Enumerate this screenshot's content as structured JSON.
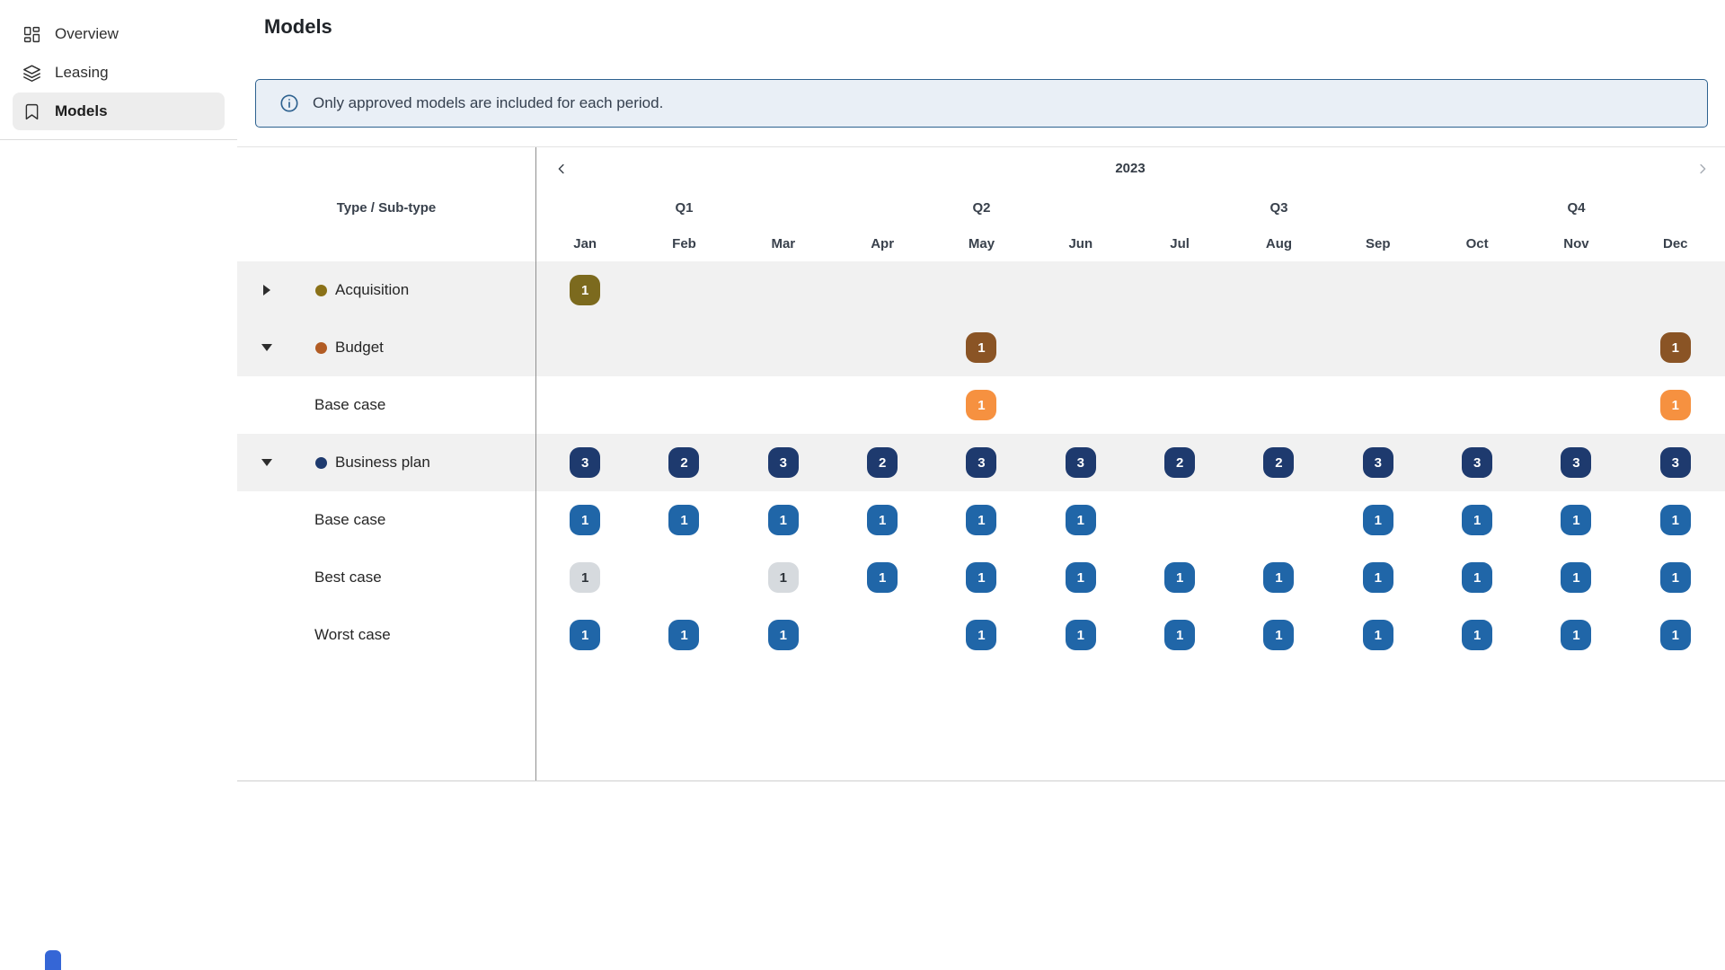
{
  "sidebar": {
    "items": [
      {
        "label": "Overview",
        "icon": "dashboard-icon",
        "active": false
      },
      {
        "label": "Leasing",
        "icon": "layers-icon",
        "active": false
      },
      {
        "label": "Models",
        "icon": "bookmark-icon",
        "active": true
      }
    ]
  },
  "header": {
    "title": "Models"
  },
  "banner": {
    "icon": "info-icon",
    "text": "Only approved models are included for each period."
  },
  "matrix": {
    "left_header": "Type / Sub-type",
    "year": "2023",
    "quarters": [
      "Q1",
      "Q2",
      "Q3",
      "Q4"
    ],
    "months": [
      "Jan",
      "Feb",
      "Mar",
      "Apr",
      "May",
      "Jun",
      "Jul",
      "Aug",
      "Sep",
      "Oct",
      "Nov",
      "Dec"
    ],
    "palette": {
      "olive": {
        "bg": "#7c6a1e",
        "fg": "#ffffff"
      },
      "brown": {
        "bg": "#8a5425",
        "fg": "#ffffff"
      },
      "orange": {
        "bg": "#f69140",
        "fg": "#ffffff"
      },
      "navy": {
        "bg": "#1e3a6e",
        "fg": "#ffffff"
      },
      "blue": {
        "bg": "#2066a8",
        "fg": "#ffffff"
      },
      "gray": {
        "bg": "#d6dade",
        "fg": "#2c3238"
      }
    },
    "dot_colors": {
      "acquisition-dot": "#8a7118",
      "budget-dot": "#b25c24",
      "business-plan-dot": "#1e3a6e"
    },
    "rows": [
      {
        "kind": "group",
        "label": "Acquisition",
        "expanded": false,
        "dot": "acquisition-dot",
        "cells": [
          {
            "v": "1",
            "c": "olive"
          },
          null,
          null,
          null,
          null,
          null,
          null,
          null,
          null,
          null,
          null,
          null
        ]
      },
      {
        "kind": "group",
        "label": "Budget",
        "expanded": true,
        "dot": "budget-dot",
        "cells": [
          null,
          null,
          null,
          null,
          {
            "v": "1",
            "c": "brown"
          },
          null,
          null,
          null,
          null,
          null,
          null,
          {
            "v": "1",
            "c": "brown"
          }
        ]
      },
      {
        "kind": "sub",
        "label": "Base case",
        "cells": [
          null,
          null,
          null,
          null,
          {
            "v": "1",
            "c": "orange"
          },
          null,
          null,
          null,
          null,
          null,
          null,
          {
            "v": "1",
            "c": "orange"
          }
        ]
      },
      {
        "kind": "group",
        "label": "Business plan",
        "expanded": true,
        "dot": "business-plan-dot",
        "cells": [
          {
            "v": "3",
            "c": "navy"
          },
          {
            "v": "2",
            "c": "navy"
          },
          {
            "v": "3",
            "c": "navy"
          },
          {
            "v": "2",
            "c": "navy"
          },
          {
            "v": "3",
            "c": "navy"
          },
          {
            "v": "3",
            "c": "navy"
          },
          {
            "v": "2",
            "c": "navy"
          },
          {
            "v": "2",
            "c": "navy"
          },
          {
            "v": "3",
            "c": "navy"
          },
          {
            "v": "3",
            "c": "navy"
          },
          {
            "v": "3",
            "c": "navy"
          },
          {
            "v": "3",
            "c": "navy"
          }
        ]
      },
      {
        "kind": "sub",
        "label": "Base case",
        "cells": [
          {
            "v": "1",
            "c": "blue"
          },
          {
            "v": "1",
            "c": "blue"
          },
          {
            "v": "1",
            "c": "blue"
          },
          {
            "v": "1",
            "c": "blue"
          },
          {
            "v": "1",
            "c": "blue"
          },
          {
            "v": "1",
            "c": "blue"
          },
          null,
          null,
          {
            "v": "1",
            "c": "blue"
          },
          {
            "v": "1",
            "c": "blue"
          },
          {
            "v": "1",
            "c": "blue"
          },
          {
            "v": "1",
            "c": "blue"
          }
        ]
      },
      {
        "kind": "sub",
        "label": "Best case",
        "cells": [
          {
            "v": "1",
            "c": "gray"
          },
          null,
          {
            "v": "1",
            "c": "gray"
          },
          {
            "v": "1",
            "c": "blue"
          },
          {
            "v": "1",
            "c": "blue"
          },
          {
            "v": "1",
            "c": "blue"
          },
          {
            "v": "1",
            "c": "blue"
          },
          {
            "v": "1",
            "c": "blue"
          },
          {
            "v": "1",
            "c": "blue"
          },
          {
            "v": "1",
            "c": "blue"
          },
          {
            "v": "1",
            "c": "blue"
          },
          {
            "v": "1",
            "c": "blue"
          }
        ]
      },
      {
        "kind": "sub",
        "label": "Worst case",
        "cells": [
          {
            "v": "1",
            "c": "blue"
          },
          {
            "v": "1",
            "c": "blue"
          },
          {
            "v": "1",
            "c": "blue"
          },
          null,
          {
            "v": "1",
            "c": "blue"
          },
          {
            "v": "1",
            "c": "blue"
          },
          {
            "v": "1",
            "c": "blue"
          },
          {
            "v": "1",
            "c": "blue"
          },
          {
            "v": "1",
            "c": "blue"
          },
          {
            "v": "1",
            "c": "blue"
          },
          {
            "v": "1",
            "c": "blue"
          },
          {
            "v": "1",
            "c": "blue"
          }
        ]
      }
    ]
  },
  "chat_widget": {
    "color": "#3566d6"
  }
}
